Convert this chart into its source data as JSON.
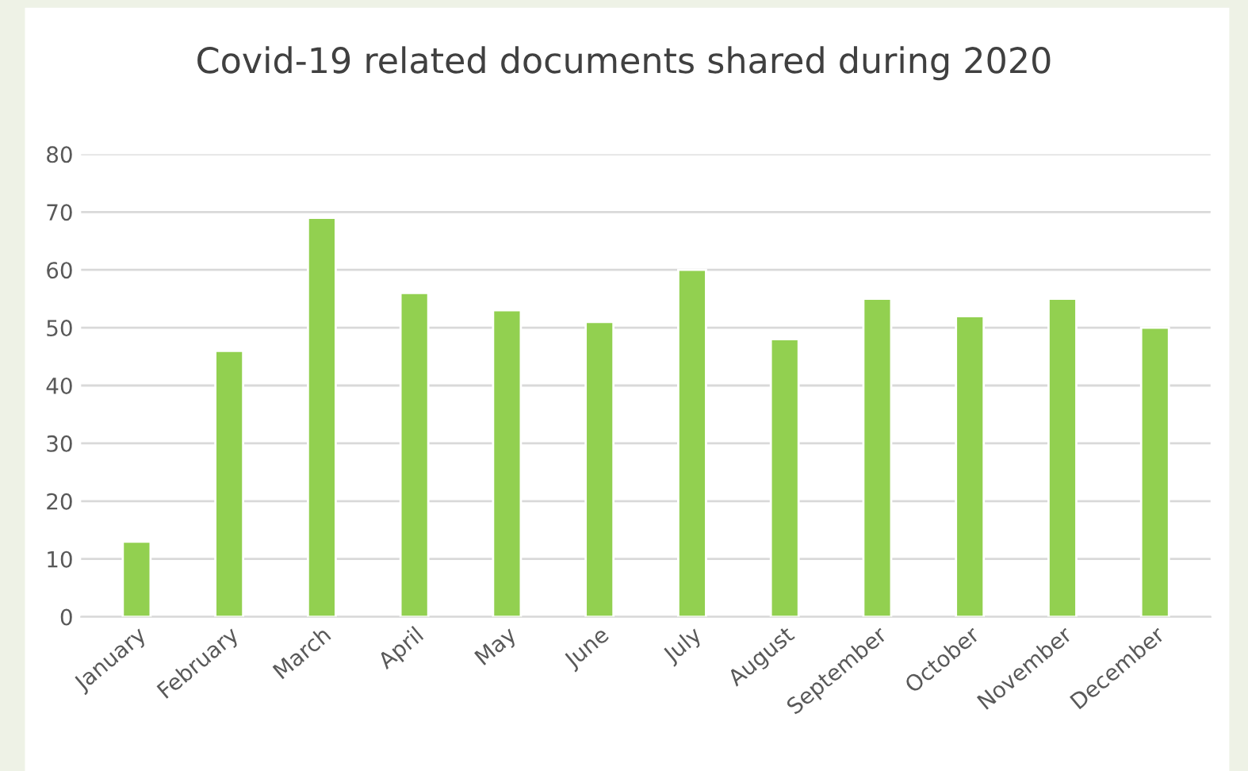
{
  "chart_data": {
    "type": "bar",
    "title": "Covid-19 related documents shared during 2020",
    "categories": [
      "January",
      "February",
      "March",
      "April",
      "May",
      "June",
      "July",
      "August",
      "September",
      "October",
      "November",
      "December"
    ],
    "values": [
      13,
      46,
      69,
      56,
      53,
      51,
      60,
      48,
      55,
      52,
      55,
      50
    ],
    "color": "#92d050",
    "ylim": [
      0,
      80
    ],
    "yticks": [
      0,
      10,
      20,
      30,
      40,
      50,
      60,
      70,
      80
    ],
    "grid": "y"
  }
}
